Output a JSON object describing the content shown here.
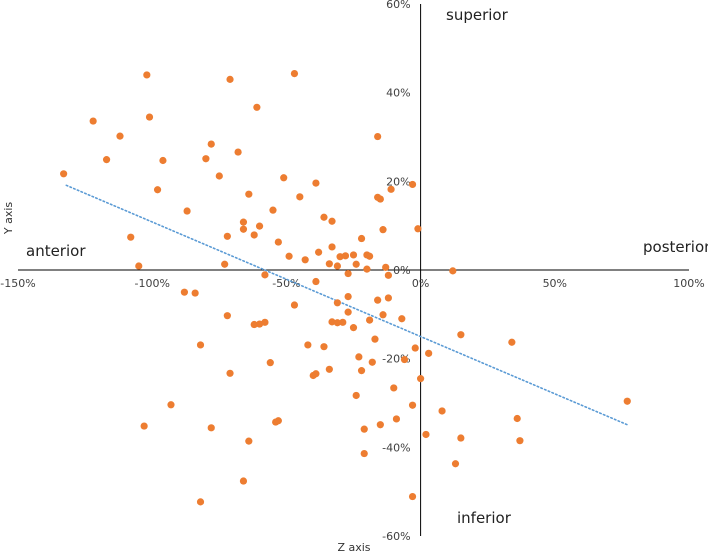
{
  "chart_data": {
    "type": "scatter",
    "xlabel": "Z axis",
    "ylabel": "Y axis",
    "xlim": [
      -150,
      100
    ],
    "ylim": [
      -60,
      60
    ],
    "x_ticks": [
      {
        "value": -150,
        "label": "-150%"
      },
      {
        "value": -100,
        "label": "-100%"
      },
      {
        "value": -50,
        "label": "-50%"
      },
      {
        "value": 0,
        "label": "0%"
      },
      {
        "value": 50,
        "label": "50%"
      },
      {
        "value": 100,
        "label": "100%"
      }
    ],
    "y_ticks": [
      {
        "value": 60,
        "label": "60%"
      },
      {
        "value": 40,
        "label": "40%"
      },
      {
        "value": 20,
        "label": "20%"
      },
      {
        "value": 0,
        "label": "0%"
      },
      {
        "value": -20,
        "label": "-20%"
      },
      {
        "value": -40,
        "label": "-40%"
      },
      {
        "value": -60,
        "label": "-60%"
      }
    ],
    "annotations": {
      "superior": "superior",
      "inferior": "inferior",
      "anterior": "anterior",
      "posterior": "posterior"
    },
    "point_color": "#ED7D31",
    "trendline_color": "#5B9BD5",
    "trendline": {
      "style": "dotted",
      "x": [
        -132,
        77
      ],
      "y": [
        19.1,
        -34.9
      ]
    },
    "points": [
      {
        "x": -133,
        "y": 21.7
      },
      {
        "x": -122,
        "y": 33.6
      },
      {
        "x": -117,
        "y": 24.9
      },
      {
        "x": -112,
        "y": 30.2
      },
      {
        "x": -108,
        "y": 7.4
      },
      {
        "x": -105,
        "y": 0.9
      },
      {
        "x": -102,
        "y": 44.0
      },
      {
        "x": -101,
        "y": 34.5
      },
      {
        "x": -98,
        "y": 18.1
      },
      {
        "x": -96,
        "y": 24.7
      },
      {
        "x": -88,
        "y": -5.0
      },
      {
        "x": -87,
        "y": 13.3
      },
      {
        "x": -84,
        "y": -5.2
      },
      {
        "x": -82,
        "y": -16.9
      },
      {
        "x": -80,
        "y": 25.1
      },
      {
        "x": -78,
        "y": 28.4
      },
      {
        "x": -75,
        "y": 21.2
      },
      {
        "x": -73,
        "y": 1.3
      },
      {
        "x": -72,
        "y": 7.6
      },
      {
        "x": -71,
        "y": 43.0
      },
      {
        "x": -68,
        "y": 26.6
      },
      {
        "x": -66,
        "y": 10.8
      },
      {
        "x": -66,
        "y": 9.2
      },
      {
        "x": -64,
        "y": 17.1
      },
      {
        "x": -62,
        "y": 7.9
      },
      {
        "x": -61,
        "y": 36.7
      },
      {
        "x": -60,
        "y": 9.9
      },
      {
        "x": -58,
        "y": -1.1
      },
      {
        "x": -55,
        "y": 13.5
      },
      {
        "x": -53,
        "y": 6.3
      },
      {
        "x": -51,
        "y": 20.8
      },
      {
        "x": -49,
        "y": 3.1
      },
      {
        "x": -47,
        "y": 44.3
      },
      {
        "x": -45,
        "y": 16.5
      },
      {
        "x": -43,
        "y": 2.3
      },
      {
        "x": -39,
        "y": 19.6
      },
      {
        "x": -39,
        "y": -2.6
      },
      {
        "x": -38,
        "y": 4.0
      },
      {
        "x": -36,
        "y": 11.9
      },
      {
        "x": -34,
        "y": 1.4
      },
      {
        "x": -33,
        "y": 11.0
      },
      {
        "x": -33,
        "y": 5.2
      },
      {
        "x": -31,
        "y": 0.9
      },
      {
        "x": -30,
        "y": 3.0
      },
      {
        "x": -28,
        "y": 3.2
      },
      {
        "x": -27,
        "y": -0.8
      },
      {
        "x": -25,
        "y": 3.4
      },
      {
        "x": -24,
        "y": 1.3
      },
      {
        "x": -22,
        "y": 7.1
      },
      {
        "x": -20,
        "y": 3.4
      },
      {
        "x": -20,
        "y": 0.2
      },
      {
        "x": -19,
        "y": 3.1
      },
      {
        "x": -16,
        "y": 16.4
      },
      {
        "x": -16,
        "y": 30.1
      },
      {
        "x": -15,
        "y": 16.0
      },
      {
        "x": -14,
        "y": 9.1
      },
      {
        "x": -13,
        "y": 0.6
      },
      {
        "x": -12,
        "y": -1.2
      },
      {
        "x": -11,
        "y": 18.2
      },
      {
        "x": -3,
        "y": 19.3
      },
      {
        "x": -1,
        "y": 9.3
      },
      {
        "x": 12,
        "y": -0.2
      },
      {
        "x": -93,
        "y": -30.4
      },
      {
        "x": -103,
        "y": -35.2
      },
      {
        "x": -78,
        "y": -35.6
      },
      {
        "x": -72,
        "y": -10.3
      },
      {
        "x": -71,
        "y": -23.3
      },
      {
        "x": -64,
        "y": -38.6
      },
      {
        "x": -62,
        "y": -12.3
      },
      {
        "x": -60,
        "y": -12.2
      },
      {
        "x": -58,
        "y": -11.8
      },
      {
        "x": -56,
        "y": -20.9
      },
      {
        "x": -54,
        "y": -34.3
      },
      {
        "x": -53,
        "y": -34.0
      },
      {
        "x": -47,
        "y": -7.9
      },
      {
        "x": -42,
        "y": -16.9
      },
      {
        "x": -40,
        "y": -23.8
      },
      {
        "x": -39,
        "y": -23.4
      },
      {
        "x": -36,
        "y": -17.3
      },
      {
        "x": -34,
        "y": -22.4
      },
      {
        "x": -33,
        "y": -11.7
      },
      {
        "x": -31,
        "y": -7.4
      },
      {
        "x": -31,
        "y": -11.9
      },
      {
        "x": -29,
        "y": -11.8
      },
      {
        "x": -27,
        "y": -6.0
      },
      {
        "x": -27,
        "y": -9.5
      },
      {
        "x": -25,
        "y": -13.0
      },
      {
        "x": -24,
        "y": -28.3
      },
      {
        "x": -23,
        "y": -19.6
      },
      {
        "x": -22,
        "y": -22.7
      },
      {
        "x": -21,
        "y": -35.9
      },
      {
        "x": -21,
        "y": -41.4
      },
      {
        "x": -19,
        "y": -11.3
      },
      {
        "x": -18,
        "y": -20.8
      },
      {
        "x": -17,
        "y": -15.6
      },
      {
        "x": -16,
        "y": -6.8
      },
      {
        "x": -15,
        "y": -34.9
      },
      {
        "x": -14,
        "y": -10.1
      },
      {
        "x": -12,
        "y": -6.3
      },
      {
        "x": -10,
        "y": -26.6
      },
      {
        "x": -9,
        "y": -33.6
      },
      {
        "x": -7,
        "y": -11.0
      },
      {
        "x": -6,
        "y": -20.2
      },
      {
        "x": -3,
        "y": -30.5
      },
      {
        "x": -3,
        "y": -51.1
      },
      {
        "x": -2,
        "y": -17.6
      },
      {
        "x": 0,
        "y": -24.5
      },
      {
        "x": 2,
        "y": -37.1
      },
      {
        "x": 3,
        "y": -18.8
      },
      {
        "x": 8,
        "y": -31.8
      },
      {
        "x": 13,
        "y": -43.7
      },
      {
        "x": 15,
        "y": -37.9
      },
      {
        "x": 15,
        "y": -14.6
      },
      {
        "x": 34,
        "y": -16.3
      },
      {
        "x": 36,
        "y": -33.5
      },
      {
        "x": 37,
        "y": -38.5
      },
      {
        "x": -66,
        "y": -47.6
      },
      {
        "x": -82,
        "y": -52.3
      },
      {
        "x": 77,
        "y": -29.6
      }
    ]
  }
}
